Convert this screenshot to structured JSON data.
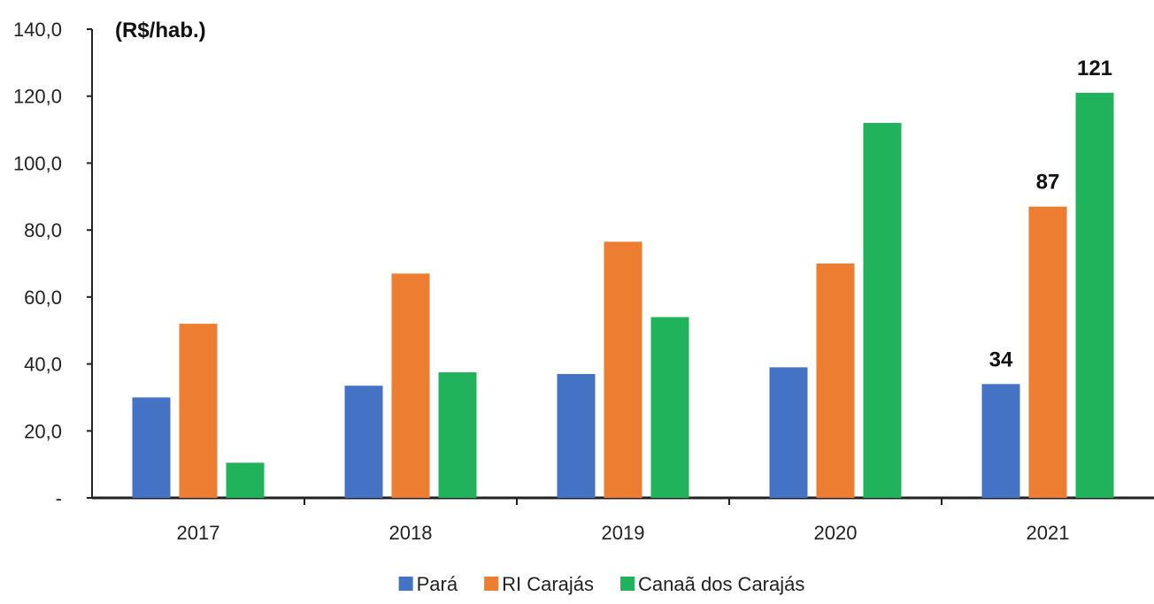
{
  "chart_data": {
    "type": "bar",
    "unit_label": "(R$/hab.)",
    "categories": [
      "2017",
      "2018",
      "2019",
      "2020",
      "2021"
    ],
    "y_tick_labels": [
      "-",
      "20,0",
      "40,0",
      "60,0",
      "80,0",
      "100,0",
      "120,0",
      "140,0"
    ],
    "ylim": [
      0,
      140
    ],
    "y_tick_step": 20,
    "grid": false,
    "legend_position": "bottom",
    "series": [
      {
        "name": "Pará",
        "color": "#4472C4",
        "values": [
          30,
          33.5,
          37,
          39,
          34
        ]
      },
      {
        "name": "RI Carajás",
        "color": "#ED7D31",
        "values": [
          52,
          67,
          76.5,
          70,
          87
        ]
      },
      {
        "name": "Canaã dos Carajás",
        "color": "#21B35B",
        "values": [
          10.5,
          37.5,
          54,
          112,
          121
        ]
      }
    ],
    "data_labels": [
      {
        "series": "Pará",
        "category": "2021",
        "text": "34"
      },
      {
        "series": "RI Carajás",
        "category": "2021",
        "text": "87"
      },
      {
        "series": "Canaã dos Carajás",
        "category": "2021",
        "text": "121"
      }
    ]
  }
}
